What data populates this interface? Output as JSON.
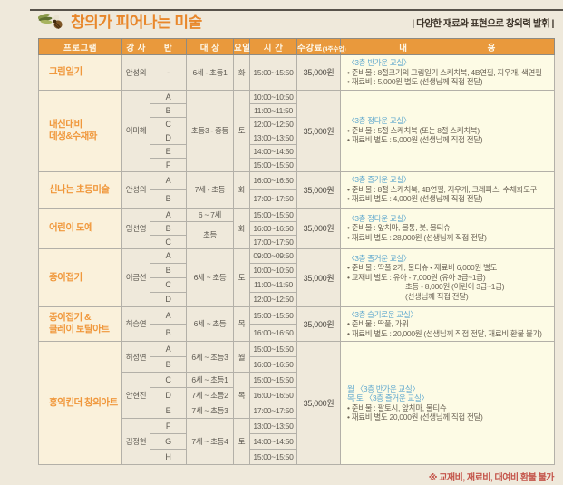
{
  "page": {
    "title": "창의가 피어나는 미술",
    "tagline": "| 다양한 재료와 표현으로 창의력 발휘 |",
    "footnote": "※ 교재비, 재료비, 대여비 환불 불가"
  },
  "colors": {
    "accent_orange": "#E8872B",
    "header_bg": "#E9993C",
    "program_bg": "#FAF1DB",
    "content_bg": "#FDFBE5",
    "room_blue": "#5FA8CE",
    "note_red": "#C4544A",
    "page_bg": "#EFE9DB"
  },
  "table": {
    "headers": [
      {
        "label": "프로그램"
      },
      {
        "label": "강 사"
      },
      {
        "label": "반"
      },
      {
        "label": "대 상"
      },
      {
        "label": "요일"
      },
      {
        "label": "시 간"
      },
      {
        "label": "수강료",
        "sub": "(4주수업)"
      },
      {
        "label": "내 용",
        "wide": true
      }
    ],
    "programs": [
      {
        "name": [
          "그림일기"
        ],
        "fee": "35,000원",
        "content": [
          {
            "style": "room",
            "text": "〈3층 반가운 교실〉"
          },
          {
            "style": "normal",
            "text": "• 준비물 : 8절크기의 그림일기 스케치북, 4B연필, 지우개, 색연필"
          },
          {
            "style": "normal",
            "text": "• 재료비 : 5,000원 별도 (선생님께 직접 전달)"
          }
        ],
        "groups": [
          {
            "instructor": "안성의",
            "day": "화",
            "rows": [
              {
                "cls": "-",
                "target": "6세 - 초등1",
                "tspan": 1,
                "time": "15:00~15:50"
              }
            ]
          }
        ]
      },
      {
        "name": [
          "내신대비",
          "데생&수채화"
        ],
        "fee": "35,000원",
        "content": [
          {
            "style": "room",
            "text": "〈3층 정다운 교실〉"
          },
          {
            "style": "normal",
            "text": "• 준비물 : 5절 스케치북 (또는 8절 스케치북)"
          },
          {
            "style": "normal",
            "text": "• 재료비 별도 : 5,000원 (선생님께 직접 전달)"
          }
        ],
        "groups": [
          {
            "instructor": "이미혜",
            "day": "토",
            "rows": [
              {
                "cls": "A",
                "target": "초등3 - 중등",
                "tspan": 6,
                "time": "10:00~10:50"
              },
              {
                "cls": "B",
                "target": null,
                "time": "11:00~11:50"
              },
              {
                "cls": "C",
                "target": null,
                "time": "12:00~12:50"
              },
              {
                "cls": "D",
                "target": null,
                "time": "13:00~13:50"
              },
              {
                "cls": "E",
                "target": null,
                "time": "14:00~14:50"
              },
              {
                "cls": "F",
                "target": null,
                "time": "15:00~15:50"
              }
            ]
          }
        ]
      },
      {
        "name": [
          "신나는 초등미술"
        ],
        "fee": "35,000원",
        "content": [
          {
            "style": "room",
            "text": "〈3층 즐거운 교실〉"
          },
          {
            "style": "normal",
            "text": "• 준비물 : 8절 스케치북, 4B연필, 지우개, 크레파스, 수채화도구"
          },
          {
            "style": "normal",
            "text": "• 재료비 별도 : 4,000원 (선생님께 직접 전달)"
          }
        ],
        "groups": [
          {
            "instructor": "안성의",
            "day": "화",
            "rows": [
              {
                "cls": "A",
                "target": "7세 - 초등",
                "tspan": 2,
                "time": "16:00~16:50"
              },
              {
                "cls": "B",
                "target": null,
                "time": "17:00~17:50"
              }
            ]
          }
        ]
      },
      {
        "name": [
          "어린이 도예"
        ],
        "fee": "35,000원",
        "content": [
          {
            "style": "room",
            "text": "〈3층 정다운 교실〉"
          },
          {
            "style": "normal",
            "text": "• 준비물 : 앞치마, 물통, 붓, 물티슈"
          },
          {
            "style": "normal",
            "text": "• 재료비 별도 : 28,000원 (선생님께 직접 전달)"
          }
        ],
        "groups": [
          {
            "instructor": "임선영",
            "day": "화",
            "rows": [
              {
                "cls": "A",
                "target": "6 ~ 7세",
                "tspan": 1,
                "time": "15:00~15:50"
              },
              {
                "cls": "B",
                "target": "초등",
                "tspan": 2,
                "time": "16:00~16:50"
              },
              {
                "cls": "C",
                "target": null,
                "time": "17:00~17:50"
              }
            ]
          }
        ]
      },
      {
        "name": [
          "종이접기"
        ],
        "fee": "35,000원",
        "content": [
          {
            "style": "room",
            "text": "〈3층 즐거운 교실〉"
          },
          {
            "style": "normal",
            "text": "• 준비물 : 딱풀 2개, 물티슈  • 재료비 6,000원 별도"
          },
          {
            "style": "normal",
            "text": "• 교재비 별도 : 유아 - 7,000원 (유아 3급~1급)"
          },
          {
            "style": "indent",
            "text": "초등 - 8,000원 (어린이 3급~1급)"
          },
          {
            "style": "indent",
            "text": "(선생님께 직접 전달)"
          }
        ],
        "groups": [
          {
            "instructor": "이금선",
            "day": "토",
            "rows": [
              {
                "cls": "A",
                "target": "6세 ~ 초등",
                "tspan": 4,
                "time": "09:00~09:50"
              },
              {
                "cls": "B",
                "target": null,
                "time": "10:00~10:50"
              },
              {
                "cls": "C",
                "target": null,
                "time": "11:00~11:50"
              },
              {
                "cls": "D",
                "target": null,
                "time": "12:00~12:50"
              }
            ]
          }
        ]
      },
      {
        "name": [
          "종이접기 &",
          "클레이 토탈아트"
        ],
        "fee": "35,000원",
        "content": [
          {
            "style": "room",
            "text": "〈3층 슬기로운 교실〉"
          },
          {
            "style": "normal",
            "text": "• 준비물 : 딱풀, 가위"
          },
          {
            "style": "normal",
            "text": "• 재료비 별도 : 20,000원 (선생님께 직접 전달, 재료비 환불 불가)"
          }
        ],
        "groups": [
          {
            "instructor": "허승연",
            "day": "목",
            "rows": [
              {
                "cls": "A",
                "target": "6세 ~ 초등",
                "tspan": 2,
                "time": "15:00~15:50"
              },
              {
                "cls": "B",
                "target": null,
                "time": "16:00~16:50"
              }
            ]
          }
        ]
      },
      {
        "name": [
          "홍익킨더 창의아트"
        ],
        "fee": "35,000원",
        "content": [
          {
            "style": "room",
            "text": "월 〈3층 반가운 교실〉"
          },
          {
            "style": "room",
            "text": "목·토 〈3층 즐거운 교실〉"
          },
          {
            "style": "normal",
            "text": "• 준비물 : 팔토시, 앞치마, 물티슈"
          },
          {
            "style": "normal",
            "text": "• 재료비 별도 20,000원 (선생님께 직접 전달)"
          }
        ],
        "groups": [
          {
            "instructor": "허성연",
            "day": "월",
            "rows": [
              {
                "cls": "A",
                "target": "6세 ~ 초등3",
                "tspan": 2,
                "time": "15:00~15:50"
              },
              {
                "cls": "B",
                "target": null,
                "time": "16:00~16:50"
              }
            ]
          },
          {
            "instructor": "안현진",
            "day": "목",
            "rows": [
              {
                "cls": "C",
                "target": "6세 ~ 초등1",
                "tspan": 1,
                "time": "15:00~15:50"
              },
              {
                "cls": "D",
                "target": "7세 ~ 초등2",
                "tspan": 1,
                "time": "16:00~16:50"
              },
              {
                "cls": "E",
                "target": "7세 ~ 초등3",
                "tspan": 1,
                "time": "17:00~17:50"
              }
            ]
          },
          {
            "instructor": "김정현",
            "day": "토",
            "rows": [
              {
                "cls": "F",
                "target": "7세 ~ 초등4",
                "tspan": 3,
                "time": "13:00~13:50"
              },
              {
                "cls": "G",
                "target": null,
                "time": "14:00~14:50"
              },
              {
                "cls": "H",
                "target": null,
                "time": "15:00~15:50"
              }
            ]
          }
        ]
      }
    ]
  }
}
